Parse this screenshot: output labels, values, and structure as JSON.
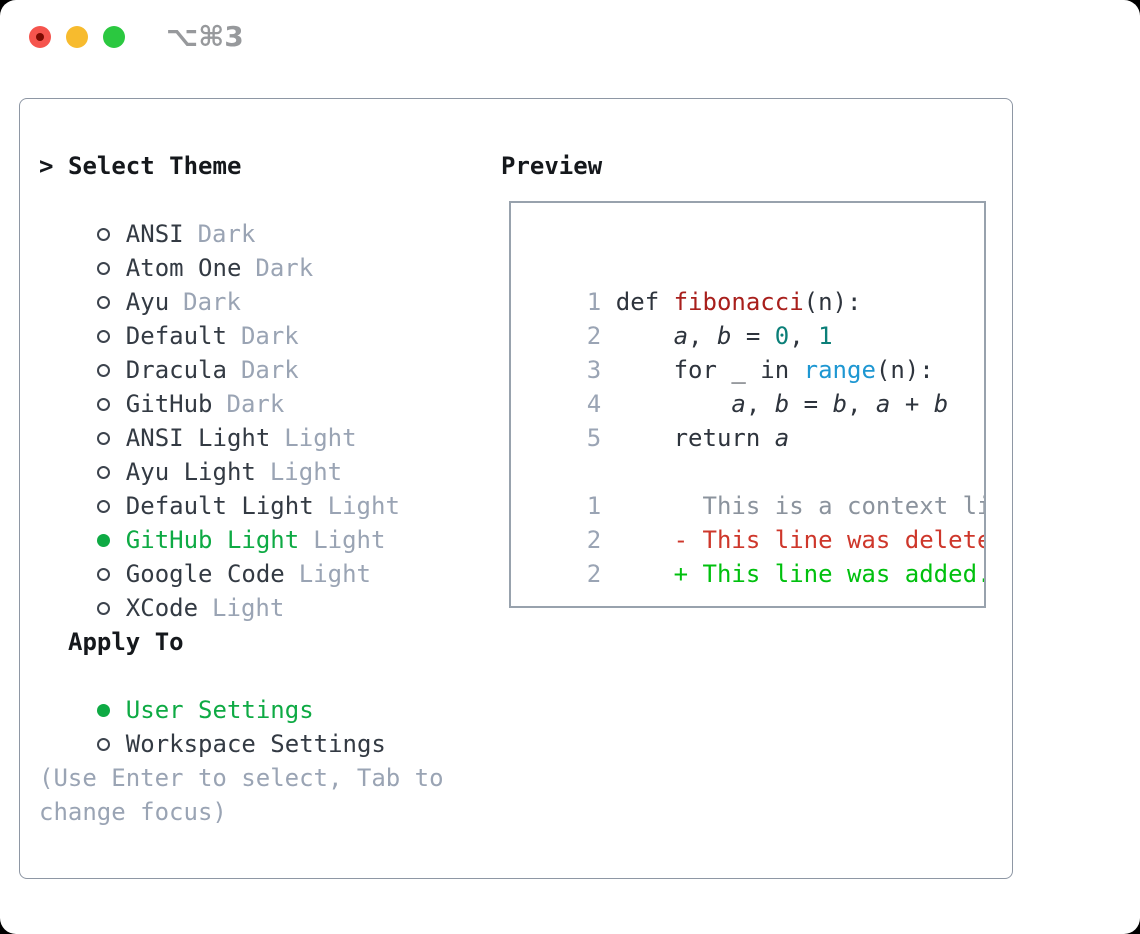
{
  "window": {
    "shortcut": "⌥⌘3",
    "buttons": [
      "close",
      "minimize",
      "zoom"
    ]
  },
  "theme_selector": {
    "prompt": ">",
    "title": "Select Theme",
    "themes": [
      {
        "name": "ANSI",
        "variant": "Dark",
        "selected": false
      },
      {
        "name": "Atom One",
        "variant": "Dark",
        "selected": false
      },
      {
        "name": "Ayu",
        "variant": "Dark",
        "selected": false
      },
      {
        "name": "Default",
        "variant": "Dark",
        "selected": false
      },
      {
        "name": "Dracula",
        "variant": "Dark",
        "selected": false
      },
      {
        "name": "GitHub",
        "variant": "Dark",
        "selected": false
      },
      {
        "name": "ANSI Light",
        "variant": "Light",
        "selected": false
      },
      {
        "name": "Ayu Light",
        "variant": "Light",
        "selected": false
      },
      {
        "name": "Default Light",
        "variant": "Light",
        "selected": false
      },
      {
        "name": "GitHub Light",
        "variant": "Light",
        "selected": true
      },
      {
        "name": "Google Code",
        "variant": "Light",
        "selected": false
      },
      {
        "name": "XCode",
        "variant": "Light",
        "selected": false
      }
    ],
    "apply_to": {
      "title": "Apply To",
      "options": [
        {
          "label": "User Settings",
          "selected": true
        },
        {
          "label": "Workspace Settings",
          "selected": false
        }
      ]
    },
    "hint_lines": [
      "(Use Enter to select, Tab to",
      "change focus)"
    ]
  },
  "preview": {
    "title": "Preview",
    "code_lines": [
      {
        "num": "1",
        "segments": [
          {
            "text": "def ",
            "style": "plain"
          },
          {
            "text": "fibonacci",
            "style": "function"
          },
          {
            "text": "(n):",
            "style": "plain"
          }
        ]
      },
      {
        "num": "2",
        "segments": [
          {
            "text": "    ",
            "style": "plain"
          },
          {
            "text": "a",
            "style": "variable"
          },
          {
            "text": ", ",
            "style": "plain"
          },
          {
            "text": "b",
            "style": "variable"
          },
          {
            "text": " = ",
            "style": "plain"
          },
          {
            "text": "0",
            "style": "number"
          },
          {
            "text": ", ",
            "style": "plain"
          },
          {
            "text": "1",
            "style": "number"
          }
        ]
      },
      {
        "num": "3",
        "segments": [
          {
            "text": "    for _ in ",
            "style": "plain"
          },
          {
            "text": "range",
            "style": "builtin"
          },
          {
            "text": "(n):",
            "style": "plain"
          }
        ]
      },
      {
        "num": "4",
        "segments": [
          {
            "text": "        ",
            "style": "plain"
          },
          {
            "text": "a",
            "style": "variable"
          },
          {
            "text": ", ",
            "style": "plain"
          },
          {
            "text": "b",
            "style": "variable"
          },
          {
            "text": " = ",
            "style": "plain"
          },
          {
            "text": "b",
            "style": "variable"
          },
          {
            "text": ", ",
            "style": "plain"
          },
          {
            "text": "a",
            "style": "variable"
          },
          {
            "text": " + ",
            "style": "plain"
          },
          {
            "text": "b",
            "style": "variable"
          }
        ]
      },
      {
        "num": "5",
        "segments": [
          {
            "text": "    return ",
            "style": "plain"
          },
          {
            "text": "a",
            "style": "variable"
          }
        ]
      },
      {
        "num": "",
        "segments": []
      },
      {
        "num": "1",
        "segments": [
          {
            "text": "      ",
            "style": "plain"
          },
          {
            "text": "This is a context line.",
            "style": "context"
          }
        ]
      },
      {
        "num": "2",
        "segments": [
          {
            "text": "    ",
            "style": "plain"
          },
          {
            "text": "- This line was deleted.",
            "style": "deleted"
          }
        ]
      },
      {
        "num": "2",
        "segments": [
          {
            "text": "    ",
            "style": "plain"
          },
          {
            "text": "+ This line was added.",
            "style": "added"
          }
        ]
      }
    ]
  },
  "colors": {
    "selection_green": "#0eaa44",
    "added_green": "#00c00e",
    "deleted_red": "#ce372b",
    "function_red": "#a81f1c",
    "number_teal": "#0b7f78",
    "builtin_blue": "#1e97d2",
    "muted_gray": "#9aa4b4",
    "text_dark": "#2e343d",
    "panel_border": "#8e97a4",
    "traffic_red": "#f5544d",
    "traffic_yellow": "#f7bb2e",
    "traffic_green": "#2bc840"
  }
}
